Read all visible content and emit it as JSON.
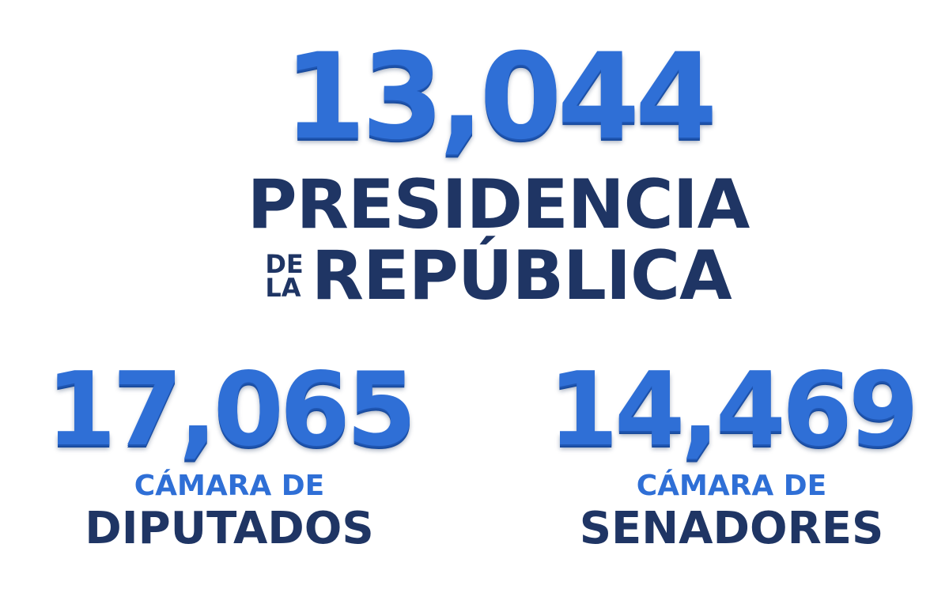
{
  "presidencia": {
    "number": "13,044",
    "line1": "PRESIDENCIA",
    "small_line1": "DE",
    "small_line2": "LA",
    "line2": "REPÚBLICA"
  },
  "diputados": {
    "number": "17,065",
    "label_top": "CÁMARA DE",
    "label_bottom": "DIPUTADOS"
  },
  "senadores": {
    "number": "14,469",
    "label_top": "CÁMARA DE",
    "label_bottom": "SENADORES"
  },
  "colors": {
    "number_blue": "#2f6fd6",
    "label_navy": "#1f3564",
    "background": "#ffffff"
  }
}
